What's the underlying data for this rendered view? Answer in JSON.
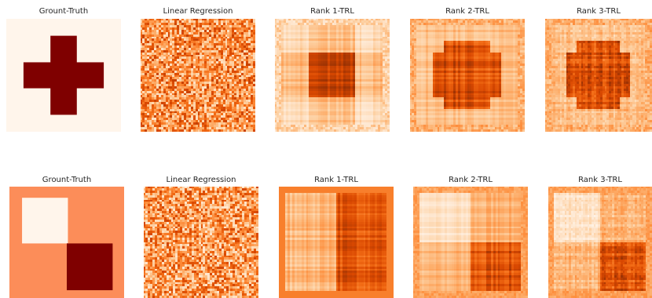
{
  "colors": {
    "cmap": [
      "#fff5eb",
      "#fee6ce",
      "#fdd0a2",
      "#fdae6b",
      "#fd8d3c",
      "#f16913",
      "#d94801",
      "#a63603",
      "#7f2704"
    ],
    "shape_fill": "#7f0000",
    "background_cross": "#fff5eb",
    "background_squares": "#fc8d59"
  },
  "chart_data": [
    {
      "type": "heatmap",
      "title": "Grount-Truth",
      "pattern": "cross",
      "method": "ground-truth"
    },
    {
      "type": "heatmap",
      "title": "Linear Regression",
      "pattern": "cross",
      "method": "noise"
    },
    {
      "type": "heatmap",
      "title": "Rank 1-TRL",
      "pattern": "cross",
      "method": "rank1"
    },
    {
      "type": "heatmap",
      "title": "Rank 2-TRL",
      "pattern": "cross",
      "method": "rank2"
    },
    {
      "type": "heatmap",
      "title": "Rank 3-TRL",
      "pattern": "cross",
      "method": "rank3"
    },
    {
      "type": "heatmap",
      "title": "Grount-Truth",
      "pattern": "squares",
      "method": "ground-truth"
    },
    {
      "type": "heatmap",
      "title": "Linear Regression",
      "pattern": "squares",
      "method": "noise"
    },
    {
      "type": "heatmap",
      "title": "Rank 1-TRL",
      "pattern": "squares",
      "method": "rank1"
    },
    {
      "type": "heatmap",
      "title": "Rank 2-TRL",
      "pattern": "squares",
      "method": "rank2"
    },
    {
      "type": "heatmap",
      "title": "Rank 3-TRL",
      "pattern": "squares",
      "method": "rank3"
    }
  ]
}
